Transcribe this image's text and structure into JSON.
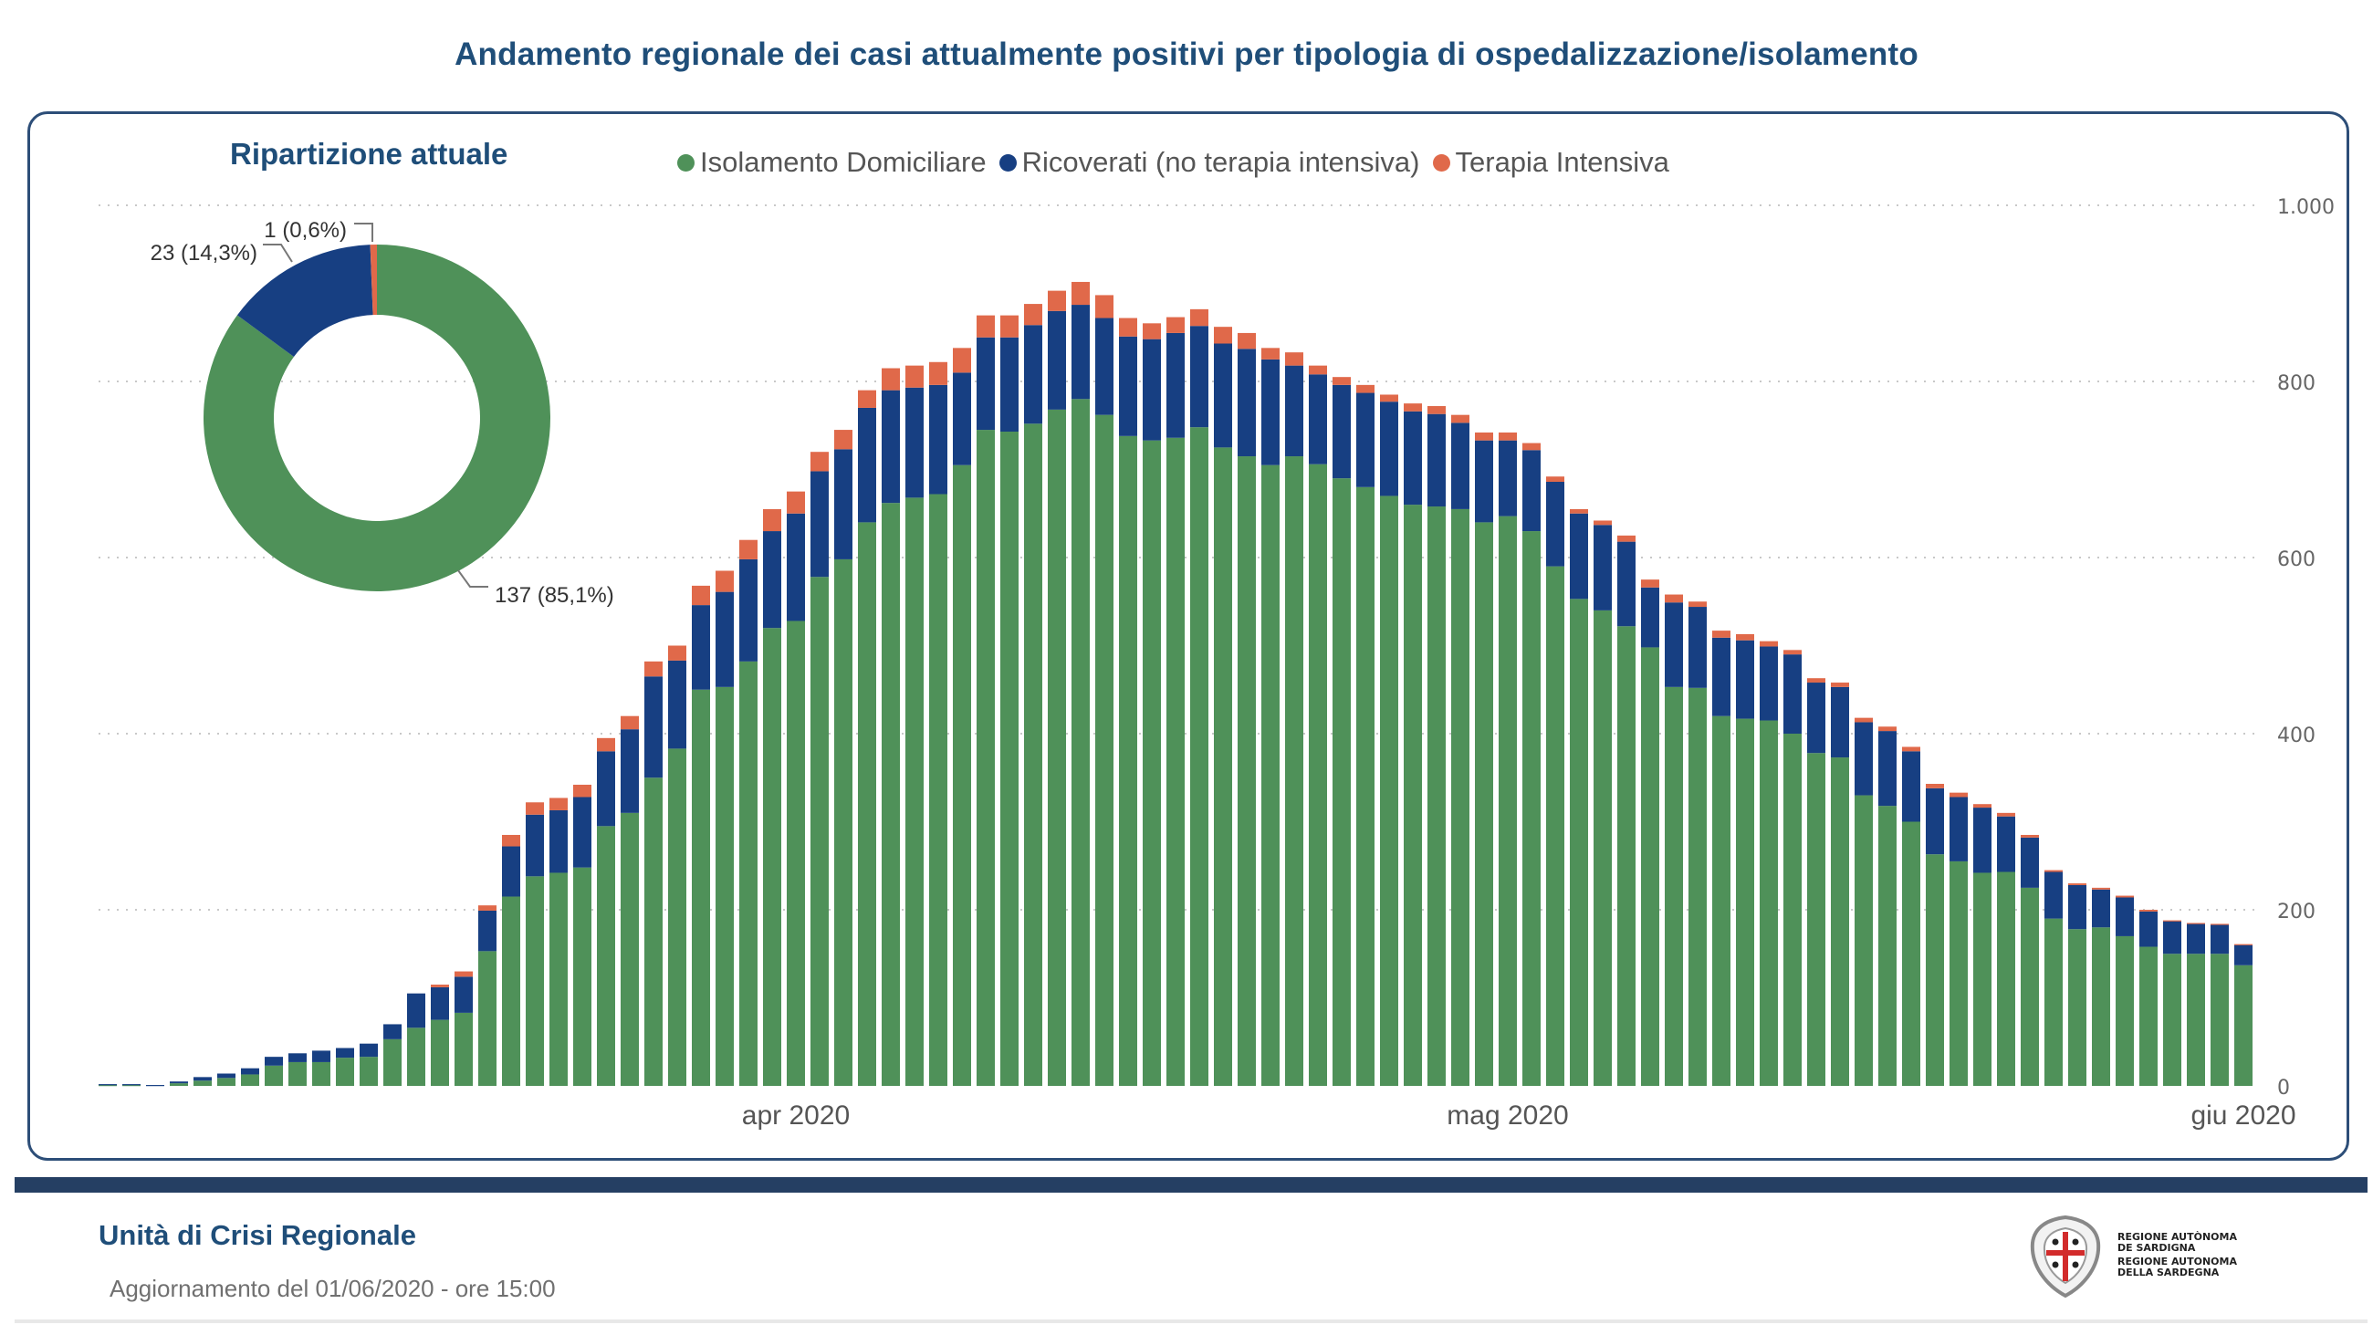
{
  "page": {
    "title": "Andamento regionale dei casi attualmente positivi per tipologia di ospedalizzazione/isolamento"
  },
  "colors": {
    "isolamento": "#4f9159",
    "ricoverati": "#173f82",
    "terapia": "#e0694a",
    "title": "#1f4e79",
    "card_border": "#2d4e78",
    "footer_bar": "#253f63"
  },
  "legend": [
    {
      "label": "Isolamento Domiciliare",
      "color": "#4f9159"
    },
    {
      "label": "Ricoverati (no terapia intensiva)",
      "color": "#173f82"
    },
    {
      "label": "Terapia Intensiva",
      "color": "#e0694a"
    }
  ],
  "donut": {
    "title": "Ripartizione attuale",
    "labels": [
      "137 (85,1%)",
      "23 (14,3%)",
      "1 (0,6%)"
    ]
  },
  "footer": {
    "title": "Unità di Crisi Regionale",
    "update": "Aggiornamento del 01/06/2020 - ore 15:00",
    "logo_lines": [
      "REGIONE AUTÒNOMA",
      "DE SARDIGNA",
      "REGIONE AUTONOMA",
      "DELLA SARDEGNA"
    ]
  },
  "chart_data": [
    {
      "type": "bar",
      "stacked": true,
      "title": "Andamento regionale dei casi attualmente positivi per tipologia di ospedalizzazione/isolamento",
      "xlabel": "",
      "ylabel": "",
      "x_start": "2020-03-03",
      "x_end": "2020-06-01",
      "x_tick_labels": [
        {
          "label": "apr 2020",
          "index": 29
        },
        {
          "label": "mag 2020",
          "index": 59
        },
        {
          "label": "giu 2020",
          "index": 90
        }
      ],
      "y_ticks": [
        0,
        200,
        400,
        600,
        800,
        1000
      ],
      "y_tick_labels": [
        "0",
        "200",
        "400",
        "600",
        "800",
        "1.000"
      ],
      "ylim": [
        0,
        1000
      ],
      "y_axis_side": "right",
      "grid": true,
      "legend_position": "top",
      "series": [
        {
          "name": "Isolamento Domiciliare",
          "values": [
            1,
            1,
            0,
            3,
            6,
            9,
            13,
            23,
            27,
            27,
            32,
            33,
            53,
            66,
            75,
            83,
            153,
            215,
            238,
            242,
            248,
            295,
            310,
            350,
            383,
            450,
            453,
            482,
            520,
            528,
            578,
            598,
            640,
            662,
            668,
            672,
            705,
            745,
            743,
            752,
            768,
            780,
            762,
            738,
            733,
            736,
            748,
            725,
            715,
            705,
            715,
            706,
            690,
            680,
            670,
            660,
            658,
            655,
            640,
            647,
            630,
            590,
            553,
            540,
            522,
            498,
            453,
            452,
            420,
            417,
            415,
            400,
            378,
            373,
            330,
            318,
            300,
            263,
            255,
            242,
            243,
            225,
            190,
            178,
            180,
            170,
            158,
            150,
            150,
            150,
            137
          ]
        },
        {
          "name": "Ricoverati (no terapia intensiva)",
          "values": [
            1,
            1,
            1,
            2,
            4,
            5,
            7,
            10,
            10,
            13,
            11,
            15,
            17,
            39,
            37,
            41,
            46,
            57,
            70,
            71,
            80,
            85,
            95,
            115,
            100,
            96,
            108,
            116,
            110,
            122,
            120,
            125,
            130,
            128,
            125,
            124,
            105,
            105,
            107,
            112,
            112,
            107,
            110,
            113,
            115,
            119,
            115,
            118,
            122,
            120,
            103,
            102,
            106,
            107,
            107,
            106,
            105,
            98,
            93,
            86,
            92,
            96,
            97,
            97,
            96,
            68,
            96,
            92,
            89,
            89,
            84,
            90,
            80,
            80,
            83,
            85,
            80,
            75,
            73,
            74,
            63,
            57,
            53,
            50,
            43,
            44,
            40,
            37,
            34,
            33,
            23
          ]
        },
        {
          "name": "Terapia Intensiva",
          "values": [
            0,
            0,
            0,
            0,
            0,
            0,
            0,
            0,
            0,
            0,
            0,
            0,
            0,
            0,
            3,
            6,
            6,
            13,
            14,
            14,
            14,
            15,
            15,
            17,
            17,
            22,
            24,
            22,
            25,
            25,
            22,
            22,
            20,
            25,
            25,
            26,
            28,
            25,
            25,
            24,
            23,
            26,
            26,
            21,
            18,
            18,
            19,
            19,
            18,
            13,
            15,
            10,
            9,
            9,
            8,
            9,
            9,
            9,
            9,
            9,
            8,
            6,
            5,
            5,
            7,
            9,
            9,
            6,
            8,
            7,
            6,
            5,
            5,
            5,
            5,
            5,
            5,
            5,
            5,
            4,
            4,
            3,
            2,
            2,
            2,
            2,
            2,
            1,
            1,
            1,
            1
          ]
        }
      ]
    },
    {
      "type": "pie",
      "donut": true,
      "title": "Ripartizione attuale",
      "categories": [
        "Isolamento Domiciliare",
        "Ricoverati (no terapia intensiva)",
        "Terapia Intensiva"
      ],
      "values": [
        137,
        23,
        1
      ],
      "percentages": [
        85.1,
        14.3,
        0.6
      ],
      "data_labels": [
        "137 (85,1%)",
        "23 (14,3%)",
        "1 (0,6%)"
      ]
    }
  ]
}
